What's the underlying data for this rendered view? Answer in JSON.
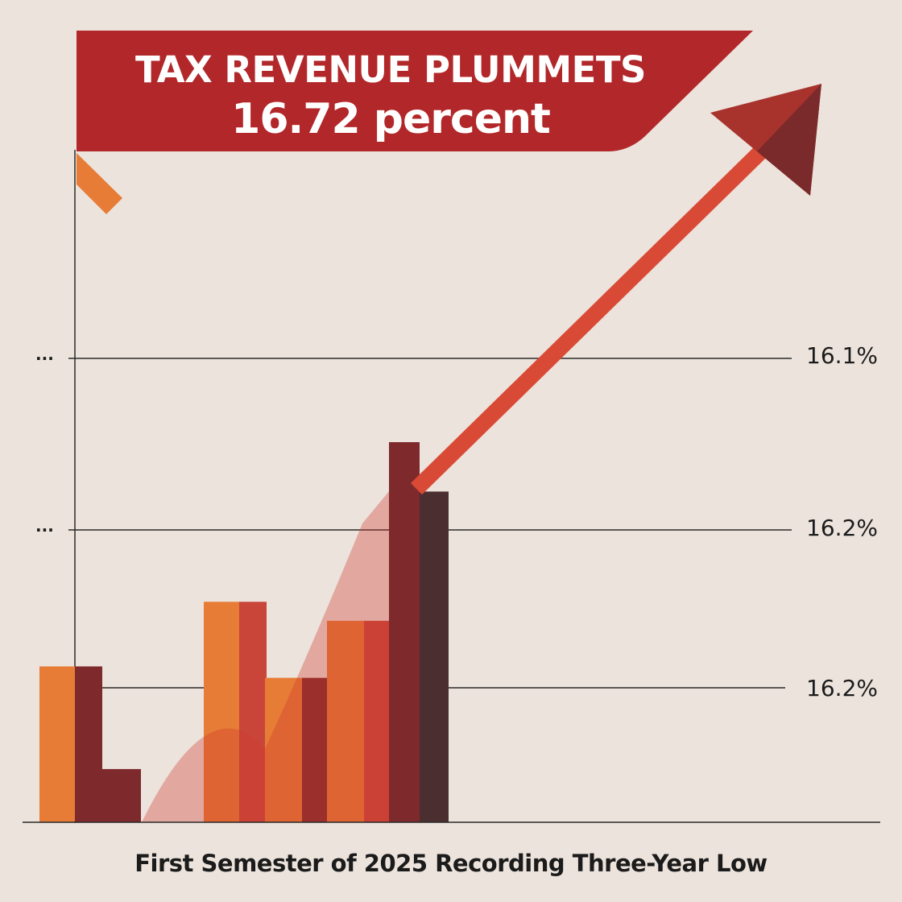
{
  "title_line1": "TAX REVENUE PLUMMETS",
  "title_line2": "16.72 percent",
  "footer": "First Semester of 2025 Recording Three-Year Low",
  "y_ticks_right": [
    "16.1%",
    "16.2%",
    "16.2%"
  ],
  "y_ticks_left": [
    "...",
    "..."
  ],
  "chart_data": {
    "type": "bar",
    "trend": "up-arrow",
    "grid": true,
    "y_tick_labels": [
      "16.1%",
      "16.2%",
      "16.2%"
    ],
    "series": [
      {
        "values": [
          0.41,
          0.14,
          0.58,
          0.38,
          0.53,
          1.0
        ]
      },
      {
        "values": [
          0.41,
          0.14,
          0.58,
          0.38,
          0.53,
          0.87
        ]
      }
    ]
  },
  "colors": {
    "background": "#ece3dc",
    "banner": "#b22729",
    "bar_light": "#e67c36",
    "bar_mid": "#c9453a",
    "bar_dark": "#7e2a2c",
    "bar_darkest": "#4b2e30",
    "arrow": "#d94a36",
    "arrow_head": "#a8322c",
    "gridline": "#2a2a2a"
  }
}
